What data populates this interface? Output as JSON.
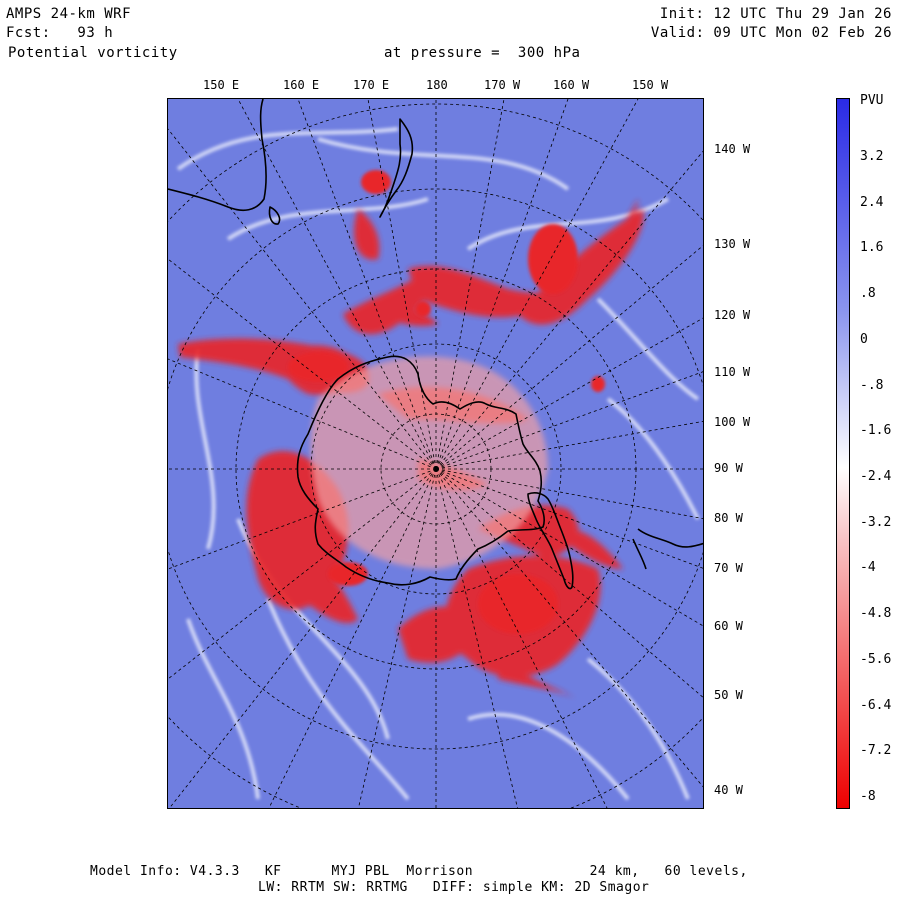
{
  "header": {
    "model_title": "AMPS 24-km WRF",
    "forecast": "Fcst:   93 h",
    "field": "Potential vorticity",
    "pressure": "at pressure =  300 hPa",
    "init": "Init: 12 UTC Thu 29 Jan 26",
    "valid": "Valid: 09 UTC Mon 02 Feb 26"
  },
  "top_longitudes": [
    "150 E",
    "160 E",
    "170 E",
    "180",
    "170 W",
    "160 W",
    "150 W"
  ],
  "right_longitudes": [
    "140 W",
    "130 W",
    "120 W",
    "110 W",
    "100 W",
    "90 W",
    "80 W",
    "70 W",
    "60 W",
    "50 W",
    "40 W"
  ],
  "colorbar": {
    "unit": "PVU",
    "labels": [
      "3.2",
      "2.4",
      "1.6",
      ".8",
      "0",
      "-.8",
      "-1.6",
      "-2.4",
      "-3.2",
      "-4",
      "-4.8",
      "-5.6",
      "-6.4",
      "-7.2",
      "-8"
    ],
    "color_high": "#2a2ae6",
    "color_mid": "#ffffff",
    "color_low": "#ee0000"
  },
  "map_colors": {
    "background_blue": "#6f7ee0",
    "negative_red": "#e8252a",
    "coastline": "#000000"
  },
  "footer": {
    "line1": "Model Info: V4.3.3   KF      MYJ PBL  Morrison              24 km,   60 levels,",
    "line2": "LW: RRTM SW: RRTMG   DIFF: simple KM: 2D Smagor"
  }
}
